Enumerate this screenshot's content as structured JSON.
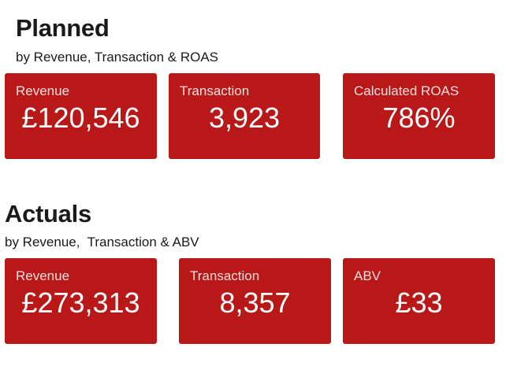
{
  "colors": {
    "card_background": "#b81818",
    "card_text": "#ffffff",
    "heading_text": "#1a1a1a"
  },
  "planned": {
    "title": "Planned",
    "subtitle": "by Revenue, Transaction & ROAS",
    "cards": [
      {
        "label": "Revenue",
        "value": "£120,546"
      },
      {
        "label": "Transaction",
        "value": "3,923"
      },
      {
        "label": "Calculated ROAS",
        "value": "786%"
      }
    ]
  },
  "actuals": {
    "title": "Actuals",
    "subtitle": "by Revenue,  Transaction & ABV",
    "cards": [
      {
        "label": "Revenue",
        "value": "£273,313"
      },
      {
        "label": "Transaction",
        "value": "8,357"
      },
      {
        "label": "ABV",
        "value": "£33"
      }
    ]
  }
}
